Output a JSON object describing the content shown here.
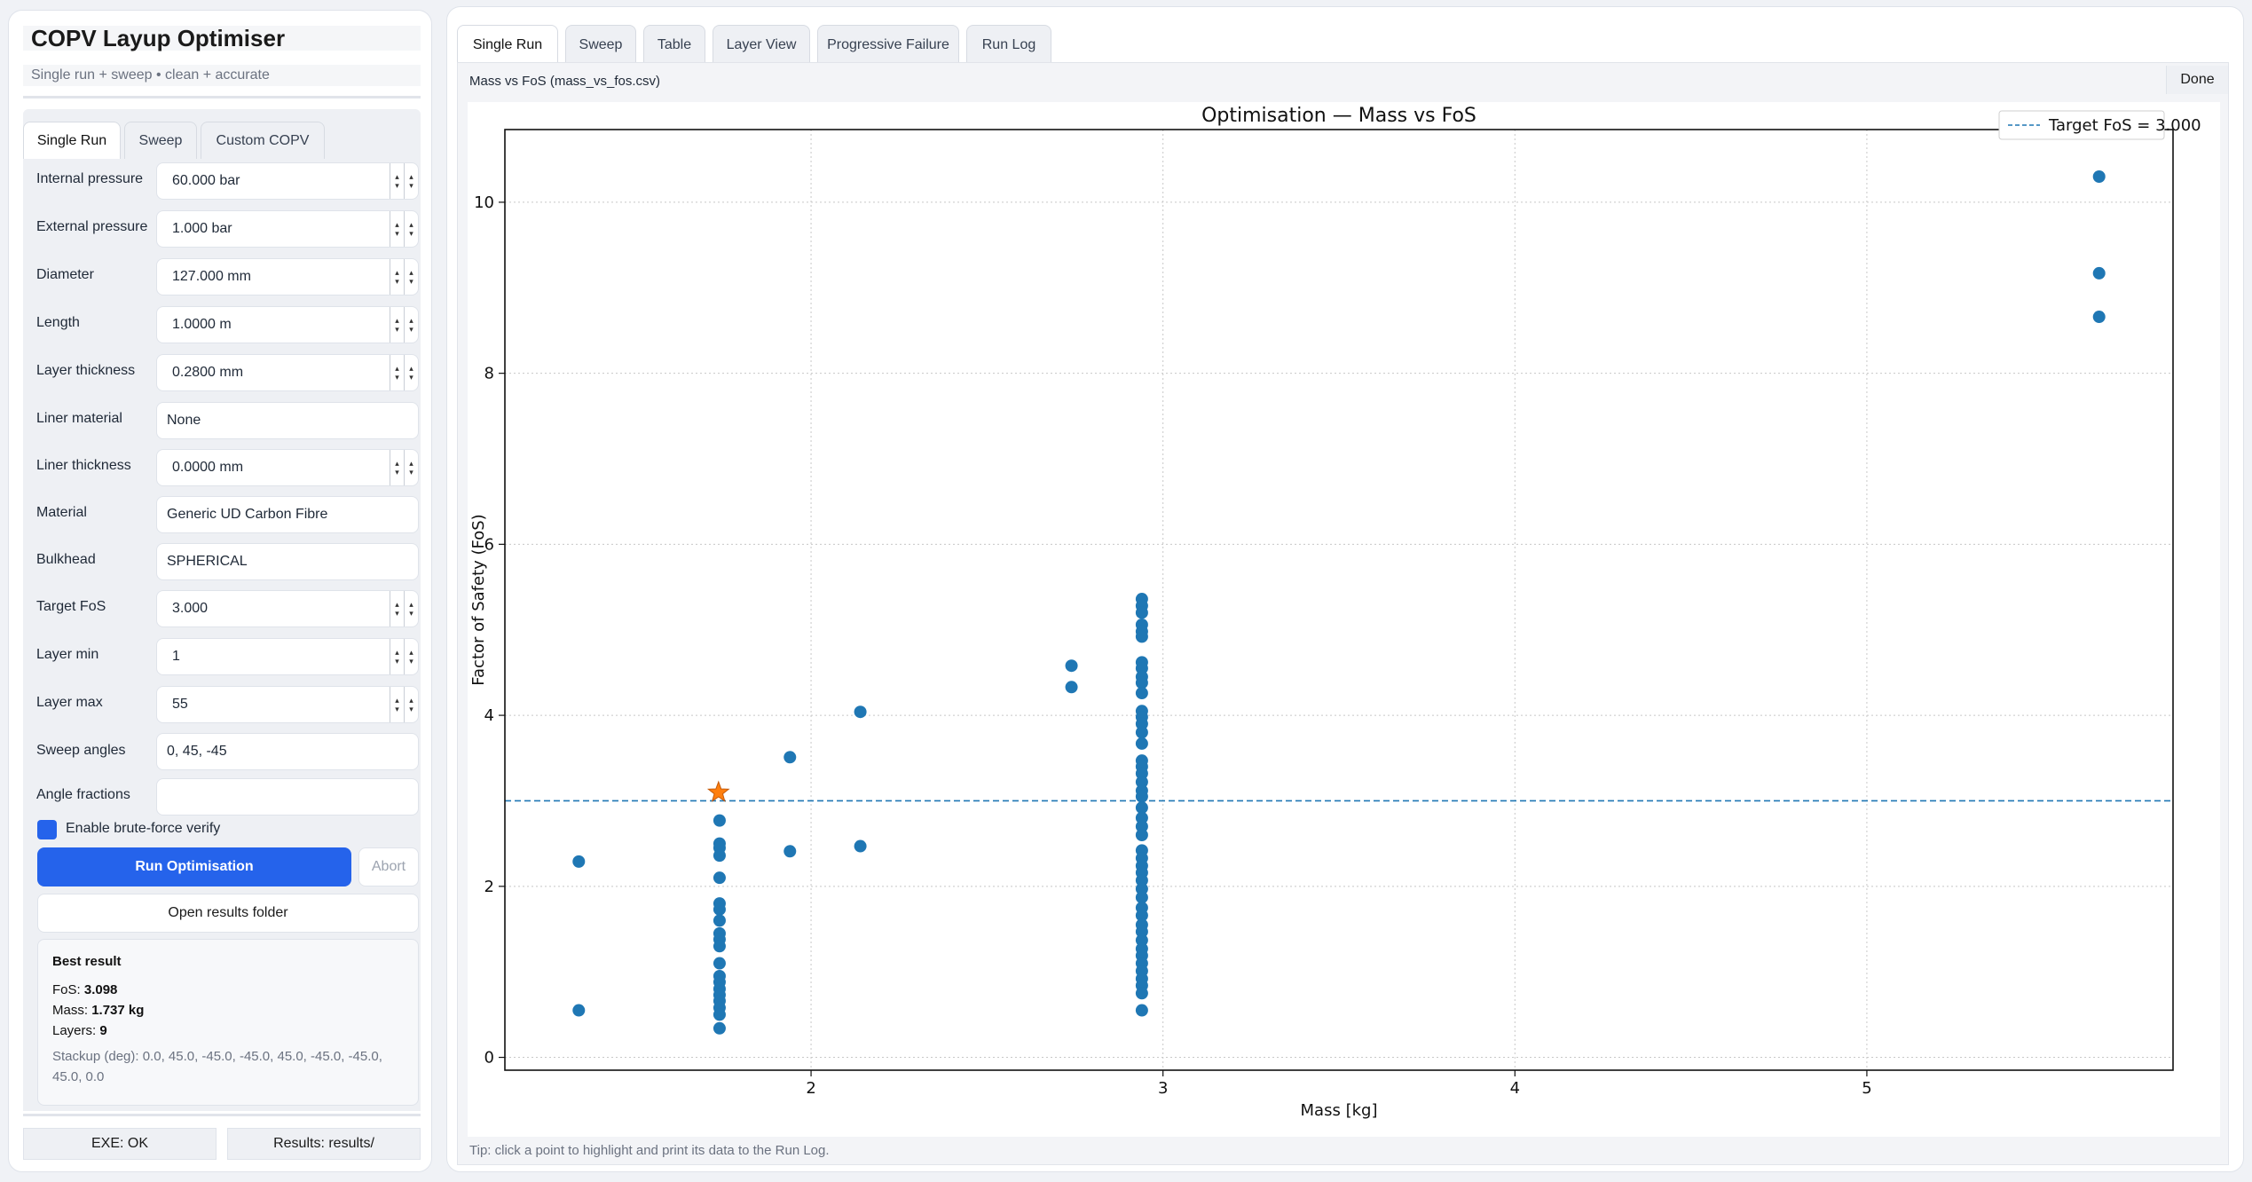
{
  "sidebar": {
    "title": "COPV Layup Optimiser",
    "subtitle": "Single run + sweep • clean + accurate",
    "tabs": [
      {
        "label": "Single Run",
        "active": true
      },
      {
        "label": "Sweep",
        "active": false
      },
      {
        "label": "Custom COPV",
        "active": false
      }
    ],
    "fields": {
      "internal_pressure": {
        "label": "Internal pressure",
        "value": "60.000 bar"
      },
      "external_pressure": {
        "label": "External pressure",
        "value": "1.000 bar"
      },
      "diameter": {
        "label": "Diameter",
        "value": "127.000 mm"
      },
      "length": {
        "label": "Length",
        "value": "1.0000 m"
      },
      "layer_thickness": {
        "label": "Layer thickness",
        "value": "0.2800 mm"
      },
      "liner_material": {
        "label": "Liner material",
        "value": "None"
      },
      "liner_thickness": {
        "label": "Liner thickness",
        "value": "0.0000 mm"
      },
      "material": {
        "label": "Material",
        "value": "Generic UD Carbon Fibre"
      },
      "bulkhead": {
        "label": "Bulkhead",
        "value": "SPHERICAL"
      },
      "target_fos": {
        "label": "Target FoS",
        "value": "3.000"
      },
      "layer_min": {
        "label": "Layer min",
        "value": "1"
      },
      "layer_max": {
        "label": "Layer max",
        "value": "55"
      },
      "sweep_angles": {
        "label": "Sweep angles",
        "value": "0, 45, -45"
      },
      "angle_fractions": {
        "label": "Angle fractions",
        "value": ""
      }
    },
    "brute_force": {
      "label": "Enable brute-force verify",
      "checked": true
    },
    "run_button": "Run Optimisation",
    "abort_button": "Abort",
    "open_results_button": "Open results folder",
    "best": {
      "heading": "Best result",
      "fos_label": "FoS: ",
      "fos": "3.098",
      "mass_label": "Mass: ",
      "mass": "1.737 kg",
      "layers_label": "Layers: ",
      "layers": "9",
      "stackup_line1": "Stackup (deg): 0.0, 45.0, -45.0, -45.0, 45.0, -45.0, -45.0,",
      "stackup_line2": "45.0, 0.0"
    },
    "status": {
      "exe": "EXE: OK",
      "results": "Results: results/"
    }
  },
  "main": {
    "tabs": [
      {
        "label": "Single Run",
        "active": true
      },
      {
        "label": "Sweep",
        "active": false
      },
      {
        "label": "Table",
        "active": false
      },
      {
        "label": "Layer View",
        "active": false
      },
      {
        "label": "Progressive Failure",
        "active": false
      },
      {
        "label": "Run Log",
        "active": false
      }
    ],
    "chart_caption": "Mass vs FoS (mass_vs_fos.csv)",
    "done_button": "Done",
    "tip": "Tip: click a point to highlight and print its data to the Run Log."
  },
  "colors": {
    "accent": "#2563eb",
    "points": "#1f77b4",
    "highlight": "#ff7f0e"
  },
  "chart_data": {
    "type": "scatter",
    "title": "Optimisation — Mass vs FoS",
    "xlabel": "Mass [kg]",
    "ylabel": "Factor of Safety (FoS)",
    "xlim": [
      1.13,
      5.87
    ],
    "ylim": [
      -0.15,
      10.85
    ],
    "xticks": [
      2,
      3,
      4,
      5
    ],
    "yticks": [
      0,
      2,
      4,
      6,
      8,
      10
    ],
    "grid": true,
    "legend": {
      "position": "top-right",
      "entries": [
        "Target FoS = 3.000"
      ]
    },
    "target_line": {
      "y": 3.0,
      "label": "Target FoS = 3.000"
    },
    "highlight": {
      "x": 1.737,
      "y": 3.098
    },
    "points": [
      [
        1.34,
        2.29
      ],
      [
        1.34,
        0.55
      ],
      [
        1.74,
        2.77
      ],
      [
        1.74,
        2.5
      ],
      [
        1.74,
        2.45
      ],
      [
        1.74,
        2.36
      ],
      [
        1.74,
        2.1
      ],
      [
        1.74,
        1.8
      ],
      [
        1.74,
        1.73
      ],
      [
        1.74,
        1.6
      ],
      [
        1.74,
        1.45
      ],
      [
        1.74,
        1.38
      ],
      [
        1.74,
        1.3
      ],
      [
        1.74,
        1.1
      ],
      [
        1.74,
        0.95
      ],
      [
        1.74,
        0.88
      ],
      [
        1.74,
        0.8
      ],
      [
        1.74,
        0.73
      ],
      [
        1.74,
        0.66
      ],
      [
        1.74,
        0.58
      ],
      [
        1.74,
        0.5
      ],
      [
        1.74,
        0.34
      ],
      [
        1.94,
        3.51
      ],
      [
        1.94,
        2.41
      ],
      [
        2.14,
        4.04
      ],
      [
        2.14,
        2.47
      ],
      [
        2.74,
        4.58
      ],
      [
        2.74,
        4.33
      ],
      [
        2.94,
        5.36
      ],
      [
        2.94,
        5.28
      ],
      [
        2.94,
        5.2
      ],
      [
        2.94,
        5.06
      ],
      [
        2.94,
        4.98
      ],
      [
        2.94,
        4.92
      ],
      [
        2.94,
        4.62
      ],
      [
        2.94,
        4.55
      ],
      [
        2.94,
        4.45
      ],
      [
        2.94,
        4.38
      ],
      [
        2.94,
        4.26
      ],
      [
        2.94,
        4.05
      ],
      [
        2.94,
        3.98
      ],
      [
        2.94,
        3.9
      ],
      [
        2.94,
        3.8
      ],
      [
        2.94,
        3.67
      ],
      [
        2.94,
        3.47
      ],
      [
        2.94,
        3.4
      ],
      [
        2.94,
        3.32
      ],
      [
        2.94,
        3.22
      ],
      [
        2.94,
        3.12
      ],
      [
        2.94,
        3.05
      ],
      [
        2.94,
        2.92
      ],
      [
        2.94,
        2.8
      ],
      [
        2.94,
        2.7
      ],
      [
        2.94,
        2.6
      ],
      [
        2.94,
        2.42
      ],
      [
        2.94,
        2.33
      ],
      [
        2.94,
        2.24
      ],
      [
        2.94,
        2.16
      ],
      [
        2.94,
        2.07
      ],
      [
        2.94,
        1.97
      ],
      [
        2.94,
        1.87
      ],
      [
        2.94,
        1.75
      ],
      [
        2.94,
        1.66
      ],
      [
        2.94,
        1.55
      ],
      [
        2.94,
        1.47
      ],
      [
        2.94,
        1.37
      ],
      [
        2.94,
        1.27
      ],
      [
        2.94,
        1.19
      ],
      [
        2.94,
        1.1
      ],
      [
        2.94,
        1.01
      ],
      [
        2.94,
        0.92
      ],
      [
        2.94,
        0.84
      ],
      [
        2.94,
        0.75
      ],
      [
        2.94,
        0.55
      ],
      [
        5.66,
        10.3
      ],
      [
        5.66,
        9.17
      ],
      [
        5.66,
        8.66
      ]
    ]
  }
}
